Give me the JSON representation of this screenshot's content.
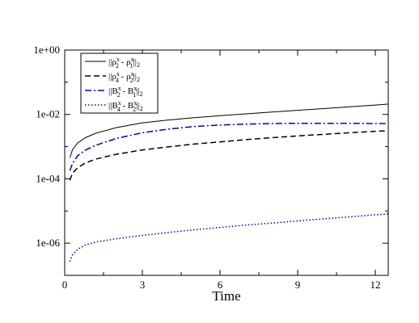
{
  "chart_data": {
    "type": "line",
    "xlabel": "Time",
    "ylabel": "",
    "title": "",
    "xlim": [
      0,
      12.5
    ],
    "ylim": [
      1e-07,
      1
    ],
    "yscale": "log",
    "grid": false,
    "legend_position": "top-left",
    "x_ticks": [
      0,
      3,
      6,
      9,
      12
    ],
    "x_tick_labels": [
      "0",
      "3",
      "6",
      "9",
      "12"
    ],
    "y_ticks": [
      1,
      0.01,
      0.0001,
      1e-06
    ],
    "y_tick_labels": [
      "1e+00",
      "1e-02",
      "1e-04",
      "1e-06"
    ],
    "series": [
      {
        "legend": {
          "base": "||ρ",
          "sup1": "x",
          "sub1": "2",
          "mid": " - ρ",
          "sup2": "x",
          "sub2": "1",
          "end": "||",
          "sub3": "2"
        },
        "color": "#000000",
        "dash": "solid",
        "x": [
          0.2,
          0.3,
          0.5,
          0.8,
          1.2,
          2,
          3,
          4,
          5,
          6,
          7,
          8,
          9,
          10,
          11,
          12,
          12.5
        ],
        "y": [
          0.00045,
          0.0008,
          0.0013,
          0.0019,
          0.0026,
          0.0039,
          0.0055,
          0.0067,
          0.0079,
          0.0091,
          0.0104,
          0.0118,
          0.0134,
          0.0152,
          0.0172,
          0.0196,
          0.021
        ]
      },
      {
        "legend": {
          "base": "||ρ",
          "sup1": "x",
          "sub1": "4",
          "mid": " - ρ",
          "sup2": "x",
          "sub2": "2",
          "end": "||",
          "sub3": "2"
        },
        "color": "#000000",
        "dash": "dashed",
        "x": [
          0.2,
          0.3,
          0.5,
          0.8,
          1.2,
          2,
          3,
          4,
          5,
          6,
          7,
          8,
          9,
          10,
          11,
          12,
          12.5
        ],
        "y": [
          9e-05,
          0.00015,
          0.00022,
          0.00031,
          0.00041,
          0.00058,
          0.00079,
          0.00098,
          0.0012,
          0.0014,
          0.00165,
          0.0019,
          0.00215,
          0.0024,
          0.0027,
          0.003,
          0.0031
        ]
      },
      {
        "legend": {
          "base": "||B",
          "sup1": "x",
          "sub1": "2",
          "mid": " - B",
          "sup2": "x",
          "sub2": "1",
          "end": "||",
          "sub3": "2"
        },
        "color": "#0000cc",
        "dash": "dashdot",
        "x": [
          0.2,
          0.3,
          0.5,
          0.8,
          1.2,
          2,
          3,
          4,
          5,
          6,
          7,
          8,
          9,
          10,
          11,
          12,
          12.5
        ],
        "y": [
          0.00018,
          0.0003,
          0.00052,
          0.00078,
          0.0011,
          0.0018,
          0.0027,
          0.0035,
          0.0042,
          0.0047,
          0.005,
          0.0052,
          0.0053,
          0.0053,
          0.0053,
          0.0052,
          0.0052
        ]
      },
      {
        "legend": {
          "base": "||B",
          "sup1": "x",
          "sub1": "4",
          "mid": " - B",
          "sup2": "x",
          "sub2": "2",
          "end": "||",
          "sub3": "2"
        },
        "color": "#0000cc",
        "dash": "dotted",
        "x": [
          0.2,
          0.3,
          0.5,
          0.8,
          1.2,
          2,
          3,
          4,
          5,
          6,
          7,
          8,
          9,
          10,
          11,
          12,
          12.5
        ],
        "y": [
          2.7e-07,
          4.3e-07,
          6.5e-07,
          8.8e-07,
          1.08e-06,
          1.38e-06,
          1.75e-06,
          2.15e-06,
          2.6e-06,
          3.1e-06,
          3.65e-06,
          4.2e-06,
          4.9e-06,
          5.7e-06,
          6.6e-06,
          7.6e-06,
          8.1e-06
        ]
      }
    ]
  }
}
